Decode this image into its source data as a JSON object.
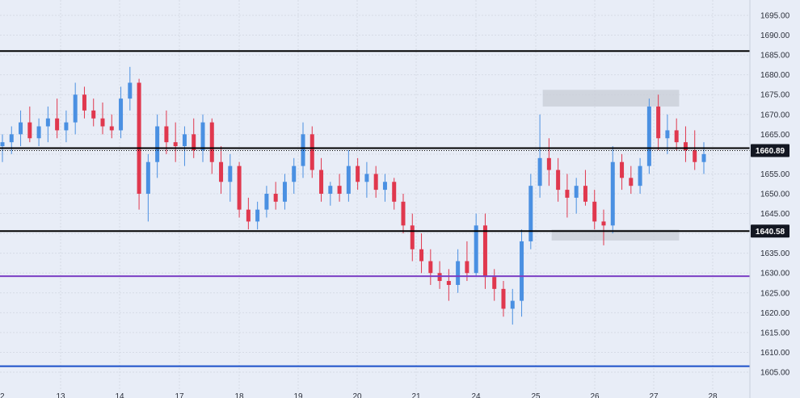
{
  "chart_data": {
    "type": "candlestick",
    "x_tick_labels": [
      "2",
      "13",
      "14",
      "17",
      "18",
      "19",
      "20",
      "21",
      "24",
      "25",
      "26",
      "27",
      "28"
    ],
    "y_tick_labels": [
      "1695.00",
      "1690.00",
      "1685.00",
      "1680.00",
      "1675.00",
      "1670.00",
      "1665.00",
      "1660.00",
      "1655.00",
      "1650.00",
      "1645.00",
      "1640.00",
      "1635.00",
      "1630.00",
      "1625.00",
      "1620.00",
      "1615.00",
      "1610.00",
      "1605.00"
    ],
    "ylim": [
      1602.5,
      1698.5
    ],
    "grid": true,
    "current_price": "1660.89",
    "level_label": "1640.58",
    "horizontal_lines": [
      {
        "value": 1686.0,
        "color": "#000000"
      },
      {
        "value": 1661.5,
        "color": "#000000"
      },
      {
        "value": 1640.58,
        "color": "#000000"
      },
      {
        "value": 1629.2,
        "color": "#7b3fc4"
      },
      {
        "value": 1606.5,
        "color": "#1a4fc9"
      },
      {
        "value": 1660.89,
        "color": "#000000",
        "style": "dotted"
      }
    ],
    "zones": [
      {
        "from": 1672.0,
        "to": 1676.2,
        "day_from": 9.15,
        "day_to": 11.45
      },
      {
        "from": 1638.2,
        "to": 1641.0,
        "day_from": 9.3,
        "day_to": 11.45
      }
    ],
    "candles": [
      [
        1662,
        1665,
        1658,
        1663
      ],
      [
        1663,
        1667,
        1660,
        1665
      ],
      [
        1665,
        1671,
        1662,
        1668
      ],
      [
        1668,
        1672,
        1663,
        1664
      ],
      [
        1664,
        1669,
        1662,
        1667
      ],
      [
        1667,
        1672,
        1663,
        1669
      ],
      [
        1669,
        1674,
        1664,
        1666
      ],
      [
        1666,
        1671,
        1663,
        1668
      ],
      [
        1668,
        1678,
        1665,
        1675
      ],
      [
        1675,
        1677,
        1669,
        1671
      ],
      [
        1671,
        1674,
        1667,
        1669
      ],
      [
        1669,
        1673,
        1665,
        1667
      ],
      [
        1667,
        1670,
        1664,
        1666
      ],
      [
        1666,
        1677,
        1664,
        1674
      ],
      [
        1674,
        1682,
        1671,
        1678
      ],
      [
        1678,
        1679,
        1646,
        1650
      ],
      [
        1650,
        1660,
        1643,
        1658
      ],
      [
        1658,
        1670,
        1654,
        1667
      ],
      [
        1667,
        1671,
        1660,
        1663
      ],
      [
        1663,
        1668,
        1658,
        1662
      ],
      [
        1662,
        1667,
        1657,
        1665
      ],
      [
        1665,
        1669,
        1659,
        1661
      ],
      [
        1661,
        1670,
        1658,
        1668
      ],
      [
        1668,
        1669,
        1655,
        1658
      ],
      [
        1658,
        1662,
        1650,
        1653
      ],
      [
        1653,
        1660,
        1648,
        1657
      ],
      [
        1657,
        1658,
        1644,
        1646
      ],
      [
        1646,
        1649,
        1641,
        1643
      ],
      [
        1643,
        1648,
        1641,
        1646
      ],
      [
        1646,
        1652,
        1644,
        1650
      ],
      [
        1650,
        1653,
        1646,
        1648
      ],
      [
        1648,
        1655,
        1646,
        1653
      ],
      [
        1653,
        1659,
        1650,
        1657
      ],
      [
        1657,
        1668,
        1654,
        1665
      ],
      [
        1665,
        1667,
        1654,
        1656
      ],
      [
        1656,
        1659,
        1648,
        1650
      ],
      [
        1650,
        1653,
        1647,
        1652
      ],
      [
        1652,
        1655,
        1648,
        1650
      ],
      [
        1650,
        1661,
        1648,
        1657
      ],
      [
        1657,
        1659,
        1651,
        1653
      ],
      [
        1653,
        1658,
        1649,
        1655
      ],
      [
        1655,
        1657,
        1649,
        1651
      ],
      [
        1651,
        1655,
        1648,
        1653
      ],
      [
        1653,
        1654,
        1646,
        1648
      ],
      [
        1648,
        1650,
        1640,
        1642
      ],
      [
        1642,
        1645,
        1633,
        1636
      ],
      [
        1636,
        1640,
        1630,
        1633
      ],
      [
        1633,
        1636,
        1627,
        1630
      ],
      [
        1630,
        1633,
        1626,
        1628
      ],
      [
        1628,
        1631,
        1623,
        1627
      ],
      [
        1627,
        1636,
        1625,
        1633
      ],
      [
        1633,
        1638,
        1628,
        1630
      ],
      [
        1630,
        1645,
        1629,
        1642
      ],
      [
        1642,
        1645,
        1626,
        1629
      ],
      [
        1629,
        1631,
        1623,
        1626
      ],
      [
        1626,
        1628,
        1619,
        1621
      ],
      [
        1621,
        1626,
        1617,
        1623
      ],
      [
        1623,
        1641,
        1619,
        1638
      ],
      [
        1638,
        1655,
        1636,
        1652
      ],
      [
        1652,
        1670,
        1649,
        1659
      ],
      [
        1659,
        1664,
        1652,
        1656
      ],
      [
        1656,
        1659,
        1648,
        1651
      ],
      [
        1651,
        1655,
        1644,
        1649
      ],
      [
        1649,
        1654,
        1645,
        1652
      ],
      [
        1652,
        1656,
        1647,
        1648
      ],
      [
        1648,
        1651,
        1641,
        1643
      ],
      [
        1643,
        1646,
        1637,
        1642
      ],
      [
        1642,
        1662,
        1640,
        1658
      ],
      [
        1658,
        1660,
        1651,
        1654
      ],
      [
        1654,
        1657,
        1650,
        1652
      ],
      [
        1652,
        1659,
        1650,
        1657
      ],
      [
        1657,
        1674,
        1655,
        1672
      ],
      [
        1672,
        1675,
        1661,
        1664
      ],
      [
        1664,
        1670,
        1660,
        1666
      ],
      [
        1666,
        1669,
        1661,
        1663
      ],
      [
        1663,
        1667,
        1658,
        1661
      ],
      [
        1661,
        1666,
        1656,
        1658
      ],
      [
        1658,
        1663,
        1655,
        1660
      ]
    ]
  }
}
